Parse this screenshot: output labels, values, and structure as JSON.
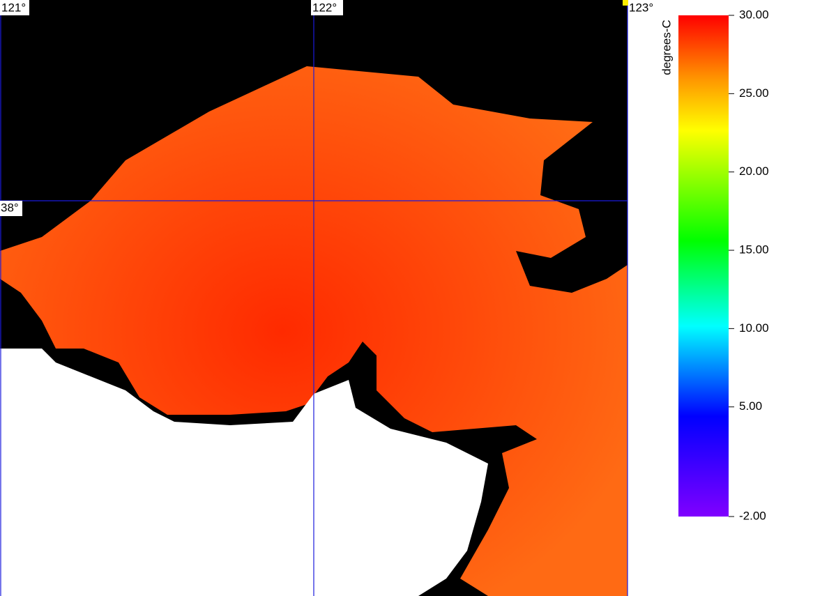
{
  "map": {
    "longitude_labels": [
      "121°",
      "122°",
      "123°"
    ],
    "latitude_labels": [
      "38°"
    ]
  },
  "colorbar": {
    "label": "degrees-C",
    "lim": [
      -2,
      30
    ],
    "ticks": [
      {
        "value": 30,
        "label": "30.00"
      },
      {
        "value": 25,
        "label": "25.00"
      },
      {
        "value": 20,
        "label": "20.00"
      },
      {
        "value": 15,
        "label": "15.00"
      },
      {
        "value": 10,
        "label": "10.00"
      },
      {
        "value": 5,
        "label": "5.00"
      },
      {
        "value": -2,
        "label": "-2.00"
      }
    ]
  }
}
